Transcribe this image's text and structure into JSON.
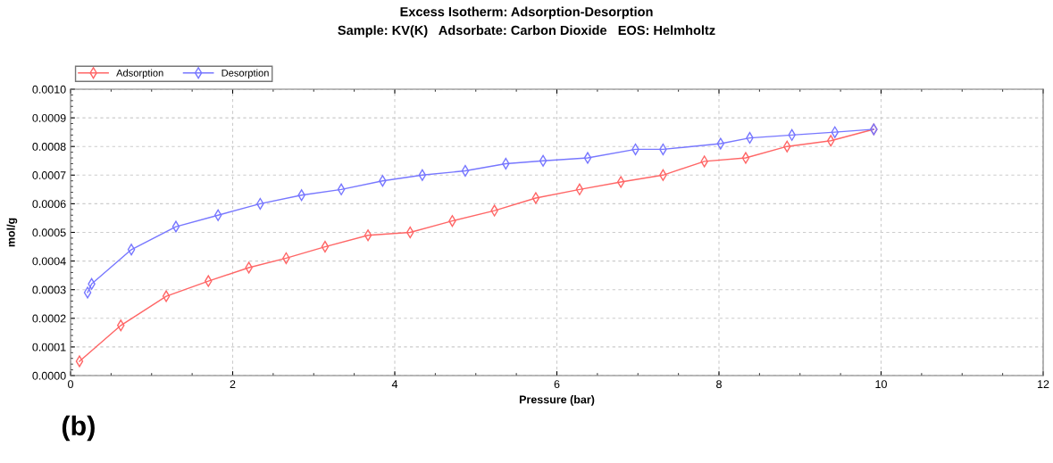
{
  "chart_data": {
    "type": "line",
    "title": "Excess Isotherm: Adsorption-Desorption",
    "subtitle": "Sample: KV(K)   Adsorbate: Carbon Dioxide   EOS: Helmholtz",
    "xlabel": "Pressure (bar)",
    "ylabel": "mol/g",
    "annotations": [
      "(b)"
    ],
    "series": [
      {
        "name": "Adsorption",
        "color": "#ff6666",
        "x": [
          0.11,
          0.62,
          1.18,
          1.7,
          2.2,
          2.66,
          3.14,
          3.67,
          4.19,
          4.71,
          5.23,
          5.74,
          6.28,
          6.79,
          7.31,
          7.82,
          8.33,
          8.84,
          9.38,
          9.91
        ],
        "values": [
          5e-05,
          0.000175,
          0.000277,
          0.00033,
          0.000377,
          0.00041,
          0.00045,
          0.00049,
          0.0005,
          0.00054,
          0.000576,
          0.00062,
          0.00065,
          0.000676,
          0.0007,
          0.000748,
          0.00076,
          0.0008,
          0.00082,
          0.00086
        ]
      },
      {
        "name": "Desorption",
        "color": "#7777ff",
        "x": [
          0.21,
          0.26,
          0.75,
          1.3,
          1.82,
          2.34,
          2.85,
          3.34,
          3.85,
          4.34,
          4.87,
          5.37,
          5.83,
          6.38,
          6.97,
          7.31,
          8.02,
          8.38,
          8.9,
          9.43,
          9.91
        ],
        "values": [
          0.00029,
          0.00032,
          0.00044,
          0.00052,
          0.00056,
          0.0006,
          0.00063,
          0.00065,
          0.00068,
          0.0007,
          0.000715,
          0.00074,
          0.00075,
          0.00076,
          0.00079,
          0.00079,
          0.00081,
          0.00083,
          0.00084,
          0.00085,
          0.00086
        ]
      }
    ],
    "xlim": [
      0,
      12
    ],
    "xticks": [
      0,
      2,
      4,
      6,
      8,
      10,
      12
    ],
    "ylim": [
      0,
      0.001
    ],
    "yticks": [
      {
        "value": 0,
        "label": "0.0000"
      },
      {
        "value": 0.0001,
        "label": "0.0001"
      },
      {
        "value": 0.0002,
        "label": "0.0002"
      },
      {
        "value": 0.0003,
        "label": "0.0003"
      },
      {
        "value": 0.0004,
        "label": "0.0004"
      },
      {
        "value": 0.0005,
        "label": "0.0005"
      },
      {
        "value": 0.0006,
        "label": "0.0006"
      },
      {
        "value": 0.0007,
        "label": "0.0007"
      },
      {
        "value": 0.0008,
        "label": "0.0008"
      },
      {
        "value": 0.0009,
        "label": "0.0009"
      },
      {
        "value": 0.001,
        "label": "0.0010"
      }
    ],
    "grid": true,
    "legend": "top left",
    "marker": "diamond",
    "line_style": "solid"
  }
}
